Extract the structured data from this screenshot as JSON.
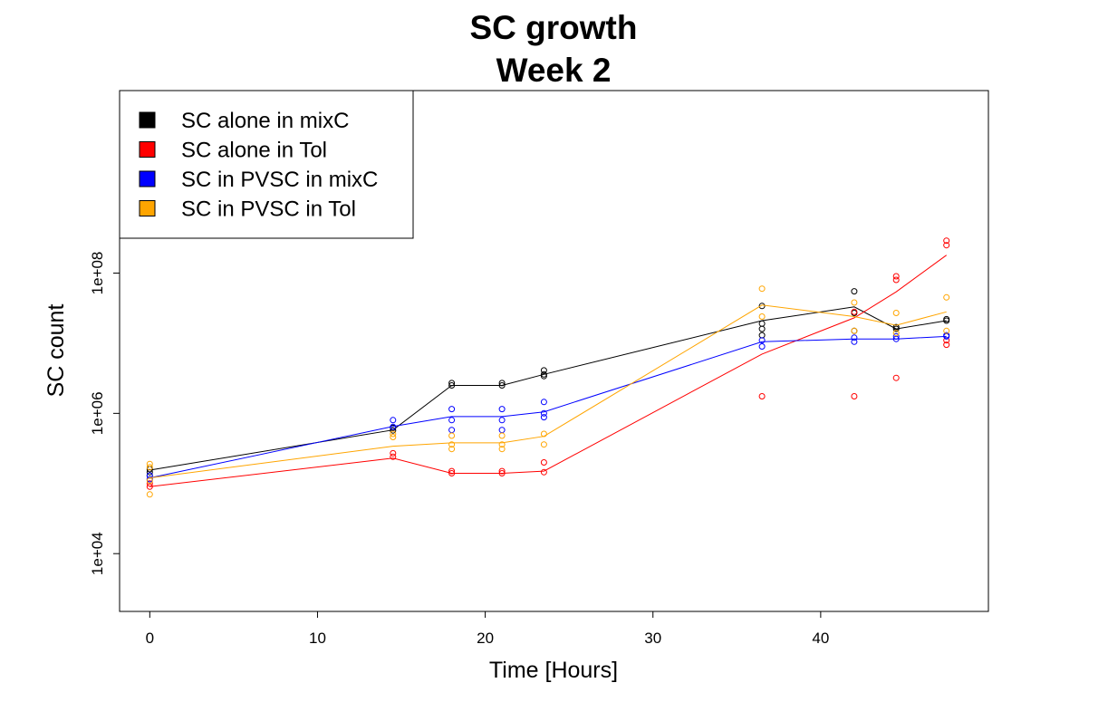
{
  "chart_data": {
    "type": "scatter",
    "title": [
      "SC growth",
      "Week 2"
    ],
    "xlabel": "Time [Hours]",
    "ylabel": "SC count",
    "x_log": false,
    "y_log": true,
    "xlim": [
      -1.8,
      50
    ],
    "ylim": [
      1500,
      40000000000
    ],
    "x_ticks": [
      0,
      10,
      20,
      30,
      40
    ],
    "x_tick_labels": [
      "0",
      "10",
      "20",
      "30",
      "40"
    ],
    "y_ticks": [
      10000,
      1000000,
      100000000
    ],
    "y_tick_labels": [
      "1e+04",
      "1e+06",
      "1e+08"
    ],
    "grid": false,
    "legend_position": "top-left",
    "series": [
      {
        "name": "SC alone in mixC",
        "color": "#000000",
        "points": [
          [
            0,
            160000
          ],
          [
            0,
            145000
          ],
          [
            0,
            130000
          ],
          [
            14.5,
            620000
          ],
          [
            14.5,
            570000
          ],
          [
            18,
            2700000
          ],
          [
            18,
            2500000
          ],
          [
            21,
            2700000
          ],
          [
            21,
            2500000
          ],
          [
            23.5,
            4100000
          ],
          [
            23.5,
            3600000
          ],
          [
            23.5,
            3400000
          ],
          [
            36.5,
            34000000
          ],
          [
            36.5,
            19000000
          ],
          [
            36.5,
            16000000
          ],
          [
            36.5,
            13000000
          ],
          [
            42,
            55000000
          ],
          [
            42,
            27000000
          ],
          [
            42,
            15000000
          ],
          [
            44.5,
            17000000
          ],
          [
            44.5,
            16000000
          ],
          [
            47.5,
            22000000
          ],
          [
            47.5,
            21000000
          ]
        ],
        "line": [
          [
            0,
            155000
          ],
          [
            14.5,
            580000
          ],
          [
            18,
            2500000
          ],
          [
            21,
            2500000
          ],
          [
            23.5,
            3600000
          ],
          [
            36.5,
            21000000
          ],
          [
            42,
            33000000
          ],
          [
            44.5,
            16000000
          ],
          [
            47.5,
            21000000
          ]
        ]
      },
      {
        "name": "SC alone in Tol",
        "color": "#ff0000",
        "points": [
          [
            0,
            100000
          ],
          [
            0,
            90000
          ],
          [
            14.5,
            270000
          ],
          [
            14.5,
            240000
          ],
          [
            18,
            150000
          ],
          [
            18,
            140000
          ],
          [
            21,
            150000
          ],
          [
            21,
            140000
          ],
          [
            23.5,
            200000
          ],
          [
            23.5,
            145000
          ],
          [
            36.5,
            1750000
          ],
          [
            42,
            28000000
          ],
          [
            42,
            1750000
          ],
          [
            44.5,
            90000000
          ],
          [
            44.5,
            80000000
          ],
          [
            44.5,
            3200000
          ],
          [
            47.5,
            290000000
          ],
          [
            47.5,
            250000000
          ],
          [
            47.5,
            11000000
          ],
          [
            47.5,
            9500000
          ]
        ],
        "line": [
          [
            0,
            90000
          ],
          [
            14.5,
            230000
          ],
          [
            18,
            140000
          ],
          [
            21,
            140000
          ],
          [
            23.5,
            150000
          ],
          [
            36.5,
            7000000
          ],
          [
            42,
            23000000
          ],
          [
            44.5,
            54000000
          ],
          [
            47.5,
            180000000
          ]
        ]
      },
      {
        "name": "SC in PVSC in mixC",
        "color": "#0000ff",
        "points": [
          [
            0,
            130000
          ],
          [
            0,
            115000
          ],
          [
            14.5,
            800000
          ],
          [
            14.5,
            640000
          ],
          [
            18,
            1150000
          ],
          [
            18,
            800000
          ],
          [
            18,
            580000
          ],
          [
            21,
            1150000
          ],
          [
            21,
            800000
          ],
          [
            21,
            580000
          ],
          [
            23.5,
            1450000
          ],
          [
            23.5,
            1000000
          ],
          [
            23.5,
            880000
          ],
          [
            36.5,
            11000000
          ],
          [
            36.5,
            9000000
          ],
          [
            42,
            12000000
          ],
          [
            42,
            10500000
          ],
          [
            44.5,
            12500000
          ],
          [
            44.5,
            11500000
          ],
          [
            47.5,
            13000000
          ],
          [
            47.5,
            12500000
          ]
        ],
        "line": [
          [
            0,
            120000
          ],
          [
            14.5,
            650000
          ],
          [
            18,
            900000
          ],
          [
            21,
            900000
          ],
          [
            23.5,
            1050000
          ],
          [
            36.5,
            10500000
          ],
          [
            42,
            11500000
          ],
          [
            44.5,
            11500000
          ],
          [
            47.5,
            12500000
          ]
        ]
      },
      {
        "name": "SC in PVSC in Tol",
        "color": "#ffa500",
        "points": [
          [
            0,
            190000
          ],
          [
            0,
            170000
          ],
          [
            0,
            110000
          ],
          [
            0,
            70000
          ],
          [
            14.5,
            510000
          ],
          [
            14.5,
            460000
          ],
          [
            18,
            480000
          ],
          [
            18,
            360000
          ],
          [
            18,
            310000
          ],
          [
            21,
            480000
          ],
          [
            21,
            360000
          ],
          [
            21,
            310000
          ],
          [
            23.5,
            510000
          ],
          [
            23.5,
            360000
          ],
          [
            36.5,
            60000000
          ],
          [
            36.5,
            24000000
          ],
          [
            42,
            38000000
          ],
          [
            42,
            15000000
          ],
          [
            44.5,
            27000000
          ],
          [
            44.5,
            14000000
          ],
          [
            47.5,
            45000000
          ],
          [
            47.5,
            15000000
          ]
        ],
        "line": [
          [
            0,
            120000
          ],
          [
            14.5,
            340000
          ],
          [
            18,
            380000
          ],
          [
            21,
            380000
          ],
          [
            23.5,
            470000
          ],
          [
            36.5,
            35000000
          ],
          [
            42,
            24000000
          ],
          [
            44.5,
            18000000
          ],
          [
            47.5,
            28000000
          ]
        ]
      }
    ]
  }
}
